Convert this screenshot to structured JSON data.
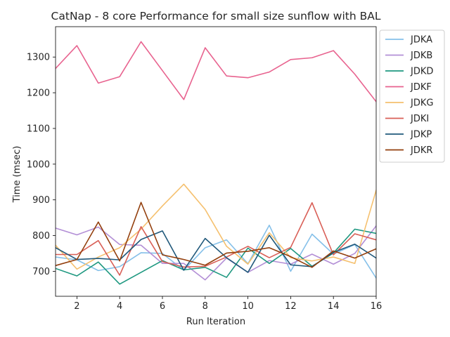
{
  "chart_data": {
    "type": "line",
    "title": "CatNap - 8 core Performance for small size sunflow with BAL",
    "xlabel": "Run Iteration",
    "ylabel": "Time (msec)",
    "xlim": [
      1,
      16
    ],
    "ylim": [
      630,
      1385
    ],
    "xticks": [
      2,
      4,
      6,
      8,
      10,
      12,
      14,
      16
    ],
    "yticks": [
      700,
      800,
      900,
      1000,
      1100,
      1200,
      1300
    ],
    "grid": false,
    "legend_position": "outside-right",
    "x": [
      1,
      2,
      3,
      4,
      5,
      6,
      7,
      8,
      9,
      10,
      11,
      12,
      13,
      14,
      15,
      16
    ],
    "series": [
      {
        "name": "JDKA",
        "color": "#85c0e9",
        "values": [
          740,
          732,
          702,
          713,
          752,
          750,
          703,
          766,
          788,
          721,
          829,
          700,
          804,
          748,
          775,
          681
        ]
      },
      {
        "name": "JDKB",
        "color": "#b38fd6",
        "values": [
          821,
          802,
          824,
          775,
          773,
          722,
          722,
          676,
          737,
          697,
          730,
          720,
          748,
          720,
          750,
          827
        ]
      },
      {
        "name": "JDKD",
        "color": "#1e9880",
        "values": [
          708,
          687,
          726,
          664,
          697,
          730,
          704,
          711,
          683,
          765,
          722,
          764,
          714,
          751,
          818,
          806
        ]
      },
      {
        "name": "JDKF",
        "color": "#e8638f",
        "values": [
          1268,
          1332,
          1227,
          1245,
          1343,
          1262,
          1181,
          1326,
          1247,
          1242,
          1258,
          1293,
          1298,
          1318,
          1252,
          1175
        ]
      },
      {
        "name": "JDKG",
        "color": "#f5c06e",
        "values": [
          773,
          706,
          740,
          766,
          818,
          883,
          944,
          873,
          770,
          720,
          808,
          738,
          729,
          740,
          722,
          927
        ]
      },
      {
        "name": "JDKI",
        "color": "#d95f57",
        "values": [
          747,
          747,
          786,
          689,
          825,
          727,
          712,
          714,
          740,
          770,
          738,
          767,
          892,
          746,
          805,
          788
        ]
      },
      {
        "name": "JDKP",
        "color": "#21597b",
        "values": [
          766,
          733,
          736,
          732,
          789,
          813,
          703,
          792,
          738,
          697,
          801,
          718,
          713,
          753,
          776,
          737
        ]
      },
      {
        "name": "JDKR",
        "color": "#933f0d",
        "values": [
          716,
          733,
          838,
          729,
          893,
          746,
          733,
          717,
          751,
          756,
          766,
          741,
          711,
          757,
          737,
          763
        ]
      }
    ]
  }
}
